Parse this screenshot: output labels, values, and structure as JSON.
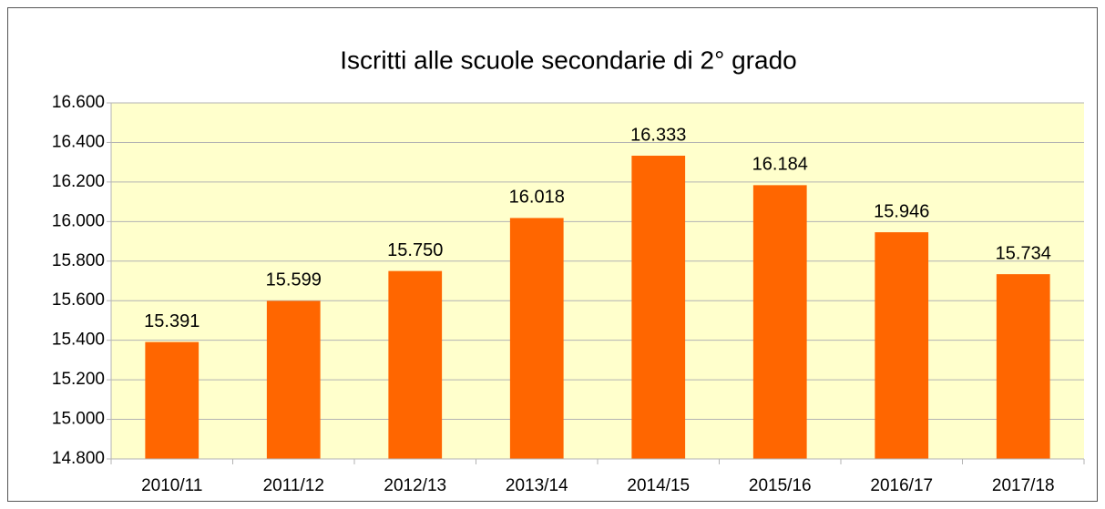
{
  "chart_data": {
    "type": "bar",
    "title": "Iscritti alle scuole secondarie di 2° grado",
    "categories": [
      "2010/11",
      "2011/12",
      "2012/13",
      "2013/14",
      "2014/15",
      "2015/16",
      "2016/17",
      "2017/18"
    ],
    "values": [
      15391,
      15599,
      15750,
      16018,
      16333,
      16184,
      15946,
      15734
    ],
    "value_labels": [
      "15.391",
      "15.599",
      "15.750",
      "16.018",
      "16.333",
      "16.184",
      "15.946",
      "15.734"
    ],
    "color": "#ff6600",
    "ylim": [
      14800,
      16600
    ],
    "yticks": [
      {
        "value": 14800,
        "label": "14.800"
      },
      {
        "value": 15000,
        "label": "15.000"
      },
      {
        "value": 15200,
        "label": "15.200"
      },
      {
        "value": 15400,
        "label": "15.400"
      },
      {
        "value": 15600,
        "label": "15.600"
      },
      {
        "value": 15800,
        "label": "15.800"
      },
      {
        "value": 16000,
        "label": "16.000"
      },
      {
        "value": 16200,
        "label": "16.200"
      },
      {
        "value": 16400,
        "label": "16.400"
      },
      {
        "value": 16600,
        "label": "16.600"
      }
    ],
    "grid": true
  }
}
